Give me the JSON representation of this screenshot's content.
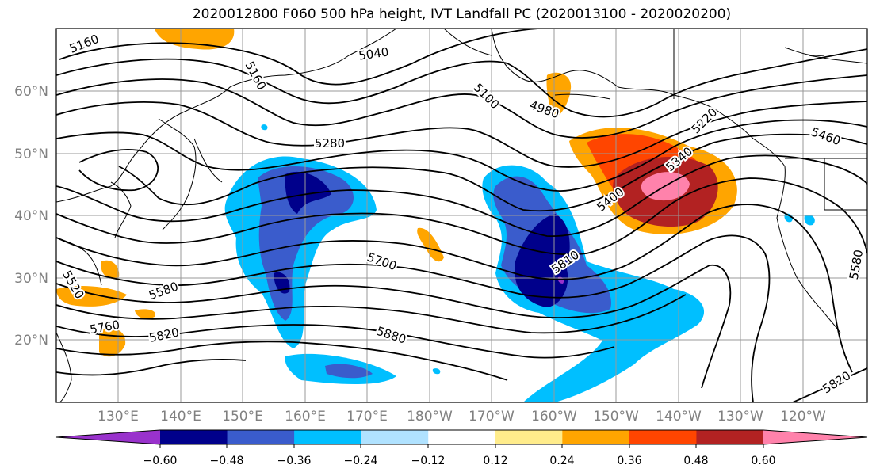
{
  "title": "2020012800 F060 500 hPa height, IVT Landfall PC (2020013100 - 2020020200)",
  "latitude_labels": [
    "60°N",
    "50°N",
    "40°N",
    "30°N",
    "20°N"
  ],
  "longitude_labels": [
    "130°E",
    "140°E",
    "150°E",
    "160°E",
    "170°E",
    "180°W",
    "170°W",
    "160°W",
    "150°W",
    "140°W",
    "130°W",
    "120°W"
  ],
  "contour_labels": [
    "5160",
    "5040",
    "5160",
    "5100",
    "4980",
    "5220",
    "5280",
    "5460",
    "5340",
    "5400",
    "5700",
    "5580",
    "5760",
    "5820",
    "5880",
    "5810",
    "5580",
    "5820",
    "5520"
  ],
  "colorbar": {
    "tick_labels": [
      "−0.60",
      "−0.48",
      "−0.36",
      "−0.24",
      "−0.12",
      "0.12",
      "0.24",
      "0.36",
      "0.48",
      "0.60"
    ],
    "colors": [
      "#9932cc",
      "#00008b",
      "#3a5ccc",
      "#00bfff",
      "#b0e2ff",
      "#ffffff",
      "#ffec8b",
      "#ffa500",
      "#ff4500",
      "#b22222",
      "#ff82ab"
    ]
  }
}
